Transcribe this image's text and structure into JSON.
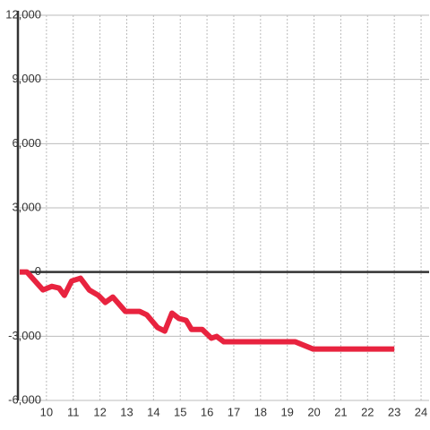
{
  "chart_data": {
    "type": "line",
    "x": [
      9.0,
      9.27,
      9.87,
      10.2,
      10.47,
      10.67,
      10.94,
      11.27,
      11.6,
      11.94,
      12.2,
      12.48,
      12.95,
      13.48,
      13.75,
      14.15,
      14.42,
      14.69,
      14.95,
      15.22,
      15.42,
      15.82,
      16.16,
      16.36,
      16.63,
      19.3,
      19.97,
      23.0
    ],
    "series": [
      {
        "color": "#e8233f",
        "values": [
          0,
          0,
          -836,
          -670,
          -750,
          -1090,
          -420,
          -290,
          -840,
          -1090,
          -1420,
          -1170,
          -1840,
          -1840,
          -2000,
          -2590,
          -2760,
          -1920,
          -2170,
          -2260,
          -2680,
          -2680,
          -3090,
          -3010,
          -3260,
          -3260,
          -3600,
          -3600
        ]
      }
    ],
    "xlim": [
      9,
      24.3
    ],
    "xticks": [
      10,
      11,
      12,
      13,
      14,
      15,
      16,
      17,
      18,
      19,
      20,
      21,
      22,
      23,
      24
    ],
    "ylim": [
      -6000,
      12000
    ],
    "yticks": [
      {
        "value": -6000,
        "label": "-6,000"
      },
      {
        "value": -3000,
        "label": "-3,000"
      },
      0,
      {
        "value": 3000,
        "label": "3,000"
      },
      {
        "value": 6000,
        "label": "6,000"
      },
      {
        "value": 9000,
        "label": "9,000"
      },
      {
        "value": 12000,
        "label": "12,000"
      }
    ],
    "grid": true
  }
}
